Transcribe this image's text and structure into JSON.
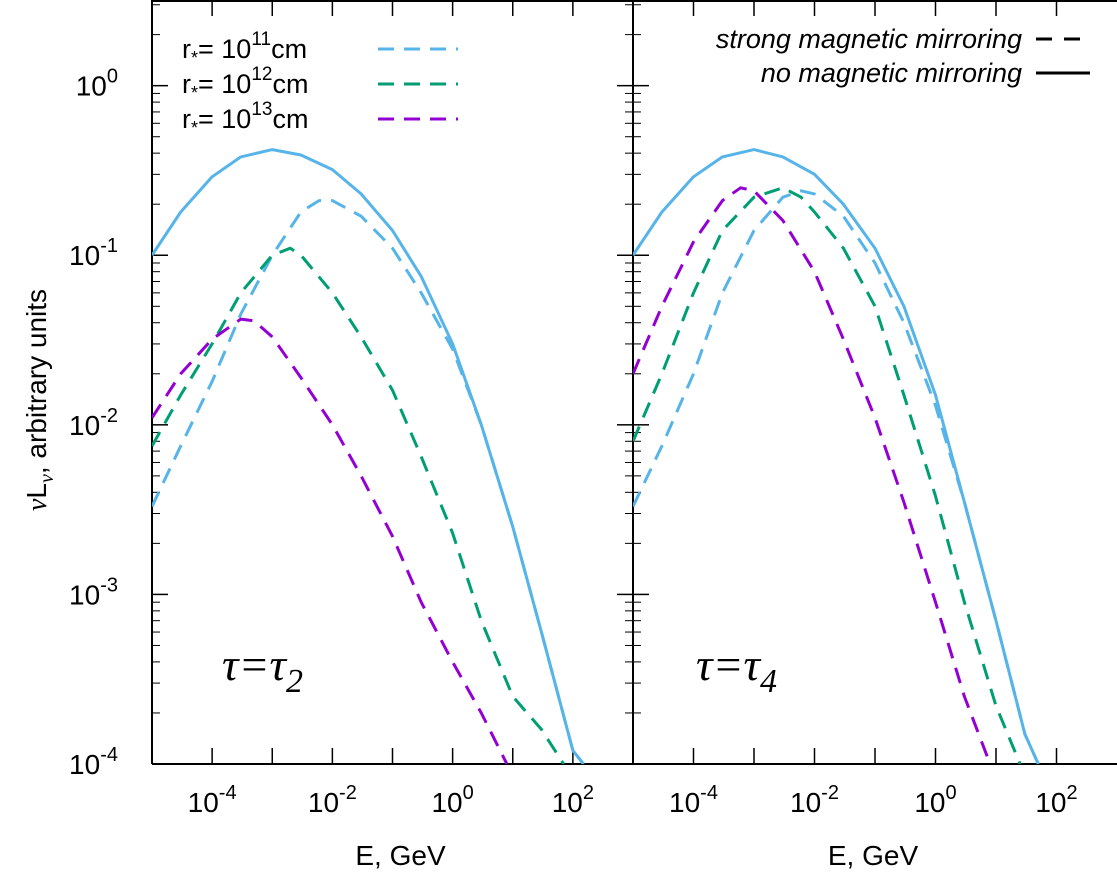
{
  "chart_data": {
    "type": "line",
    "scale": {
      "x": "log",
      "y": "log"
    },
    "ylabel": {
      "prefix": "νL",
      "sub": "ν",
      "suffix": ", arbitrary units"
    },
    "xlabel": "E, GeV",
    "ylim": [
      0.0001,
      3
    ],
    "y_ticks": [
      {
        "mant": "10",
        "exp": "0",
        "value": 1
      },
      {
        "mant": "10",
        "exp": "-1",
        "value": 0.1
      },
      {
        "mant": "10",
        "exp": "-2",
        "value": 0.01
      },
      {
        "mant": "10",
        "exp": "-3",
        "value": 0.001
      },
      {
        "mant": "10",
        "exp": "-4",
        "value": 0.0001
      }
    ],
    "x_ticks": [
      {
        "mant": "10",
        "exp": "-4",
        "value": 0.0001
      },
      {
        "mant": "10",
        "exp": "-2",
        "value": 0.01
      },
      {
        "mant": "10",
        "exp": "0",
        "value": 1
      },
      {
        "mant": "10",
        "exp": "2",
        "value": 100
      }
    ],
    "legend": {
      "radius_entries": [
        {
          "prefix": "r",
          "sub": "*",
          "mid": "= 10",
          "exp": "11",
          "unit": "cm",
          "color": "#56b4e9"
        },
        {
          "prefix": "r",
          "sub": "*",
          "mid": "= 10",
          "exp": "12",
          "unit": "cm",
          "color": "#009e73"
        },
        {
          "prefix": "r",
          "sub": "*",
          "mid": "= 10",
          "exp": "13",
          "unit": "cm",
          "color": "#9400d3"
        }
      ],
      "style_entries": [
        {
          "label": "strong magnetic mirroring",
          "style": "dashed"
        },
        {
          "label": "no magnetic mirroring",
          "style": "solid"
        }
      ]
    },
    "panels": [
      {
        "label": {
          "main": "τ=τ",
          "sub": "2"
        },
        "xlim": [
          1e-05,
          1000
        ],
        "series": [
          {
            "color": "#56b4e9",
            "style": "solid",
            "x": [
              1e-05,
              3e-05,
              0.0001,
              0.0003,
              0.001,
              0.003,
              0.01,
              0.03,
              0.1,
              0.3,
              1,
              3,
              10,
              30,
              100,
              150
            ],
            "y": [
              0.1,
              0.18,
              0.29,
              0.38,
              0.42,
              0.39,
              0.32,
              0.23,
              0.14,
              0.075,
              0.03,
              0.01,
              0.0025,
              0.0006,
              0.00012,
              0.0001
            ]
          },
          {
            "color": "#56b4e9",
            "style": "dashed",
            "x": [
              1e-05,
              3e-05,
              0.0001,
              0.0003,
              0.001,
              0.003,
              0.006,
              0.01,
              0.03,
              0.1,
              0.3,
              1,
              3,
              10,
              30,
              100,
              150
            ],
            "y": [
              0.0033,
              0.0075,
              0.018,
              0.045,
              0.1,
              0.18,
              0.21,
              0.21,
              0.17,
              0.11,
              0.06,
              0.028,
              0.01,
              0.0025,
              0.0006,
              0.00012,
              0.0001
            ]
          },
          {
            "color": "#009e73",
            "style": "dashed",
            "x": [
              1e-05,
              3e-05,
              0.0001,
              0.0003,
              0.001,
              0.002,
              0.003,
              0.01,
              0.03,
              0.1,
              0.3,
              1,
              3,
              10,
              30,
              70
            ],
            "y": [
              0.0075,
              0.015,
              0.03,
              0.06,
              0.1,
              0.11,
              0.1,
              0.06,
              0.033,
              0.016,
              0.0065,
              0.0023,
              0.0007,
              0.00025,
              0.00016,
              0.0001
            ]
          },
          {
            "color": "#9400d3",
            "style": "dashed",
            "x": [
              1e-05,
              3e-05,
              0.0001,
              0.0003,
              0.0005,
              0.001,
              0.003,
              0.01,
              0.03,
              0.1,
              0.3,
              1,
              3,
              8
            ],
            "y": [
              0.011,
              0.02,
              0.032,
              0.042,
              0.041,
              0.033,
              0.019,
              0.01,
              0.005,
              0.0022,
              0.0009,
              0.0004,
              0.0002,
              0.0001
            ]
          }
        ]
      },
      {
        "label": {
          "main": "τ=τ",
          "sub": "4"
        },
        "xlim": [
          1e-05,
          1000
        ],
        "series": [
          {
            "color": "#56b4e9",
            "style": "solid",
            "x": [
              1e-05,
              3e-05,
              0.0001,
              0.0003,
              0.001,
              0.003,
              0.01,
              0.03,
              0.1,
              0.3,
              1,
              3,
              10,
              30,
              50
            ],
            "y": [
              0.1,
              0.18,
              0.29,
              0.38,
              0.42,
              0.38,
              0.3,
              0.2,
              0.11,
              0.05,
              0.015,
              0.0035,
              0.0007,
              0.00015,
              0.0001
            ]
          },
          {
            "color": "#56b4e9",
            "style": "dashed",
            "x": [
              1e-05,
              3e-05,
              0.0001,
              0.0003,
              0.001,
              0.003,
              0.006,
              0.01,
              0.03,
              0.1,
              0.3,
              1,
              3,
              10,
              30,
              50
            ],
            "y": [
              0.0033,
              0.0075,
              0.02,
              0.06,
              0.14,
              0.22,
              0.24,
              0.23,
              0.17,
              0.09,
              0.04,
              0.013,
              0.0035,
              0.0007,
              0.00015,
              0.0001
            ]
          },
          {
            "color": "#009e73",
            "style": "dashed",
            "x": [
              1e-05,
              3e-05,
              0.0001,
              0.0003,
              0.001,
              0.003,
              0.006,
              0.01,
              0.03,
              0.1,
              0.3,
              1,
              3,
              10,
              25
            ],
            "y": [
              0.008,
              0.02,
              0.06,
              0.14,
              0.22,
              0.25,
              0.22,
              0.18,
              0.11,
              0.05,
              0.015,
              0.0038,
              0.0009,
              0.00022,
              0.0001
            ]
          },
          {
            "color": "#9400d3",
            "style": "dashed",
            "x": [
              1e-05,
              3e-05,
              0.0001,
              0.0003,
              0.0006,
              0.001,
              0.003,
              0.01,
              0.03,
              0.1,
              0.3,
              1,
              3,
              8
            ],
            "y": [
              0.02,
              0.05,
              0.12,
              0.21,
              0.25,
              0.24,
              0.16,
              0.08,
              0.032,
              0.011,
              0.0035,
              0.0009,
              0.00025,
              0.0001
            ]
          }
        ]
      }
    ]
  }
}
